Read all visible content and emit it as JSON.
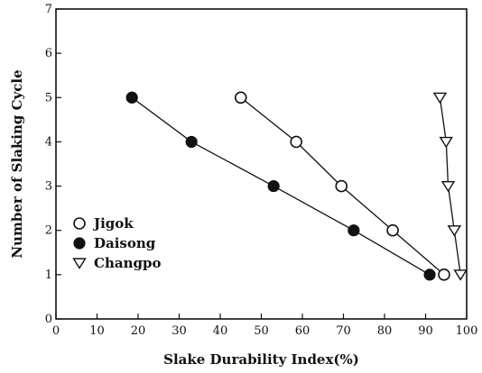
{
  "chart_data": {
    "type": "line",
    "title": "",
    "xlabel": "Slake Durability Index(%)",
    "ylabel": "Number of Slaking Cycle",
    "xlim": [
      0,
      100
    ],
    "ylim": [
      0,
      7
    ],
    "x_ticks": [
      0,
      10,
      20,
      30,
      40,
      50,
      60,
      70,
      80,
      90,
      100
    ],
    "y_ticks": [
      0,
      1,
      2,
      3,
      4,
      5,
      6,
      7
    ],
    "grid": false,
    "legend_position": "lower-left",
    "series": [
      {
        "name": "Jigok",
        "marker": "open-circle",
        "color": "#111111",
        "points": [
          [
            45,
            5
          ],
          [
            58.5,
            4
          ],
          [
            69.5,
            3
          ],
          [
            82,
            2
          ],
          [
            94.5,
            1
          ]
        ]
      },
      {
        "name": "Daisong",
        "marker": "filled-circle",
        "color": "#111111",
        "points": [
          [
            18.5,
            5
          ],
          [
            33,
            4
          ],
          [
            53,
            3
          ],
          [
            72.5,
            2
          ],
          [
            91,
            1
          ]
        ]
      },
      {
        "name": "Changpo",
        "marker": "open-triangle-down",
        "color": "#111111",
        "points": [
          [
            93.5,
            5
          ],
          [
            95,
            4
          ],
          [
            95.5,
            3
          ],
          [
            97,
            2
          ],
          [
            98.5,
            1
          ]
        ]
      }
    ]
  }
}
